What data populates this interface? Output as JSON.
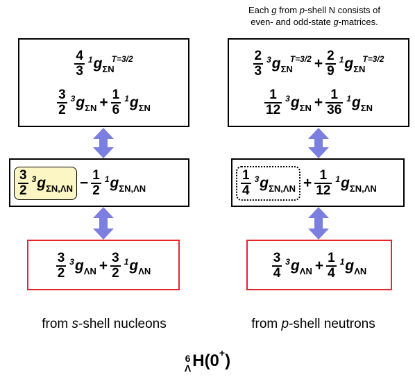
{
  "note": {
    "line1": [
      "Each ",
      "g",
      "  from ",
      "p",
      "-shell N consists of"
    ],
    "line2": [
      "even- and odd-state ",
      "g",
      "-matrices."
    ]
  },
  "left": {
    "top": {
      "row1": {
        "num": "4",
        "den": "3",
        "pre": "1",
        "sub": "ΣN",
        "sup": "T=3/2"
      },
      "row2": [
        {
          "num": "3",
          "den": "2",
          "pre": "3",
          "sub": "ΣN"
        },
        {
          "op": "+"
        },
        {
          "num": "1",
          "den": "6",
          "pre": "1",
          "sub": "ΣN"
        }
      ]
    },
    "middle": [
      {
        "num": "3",
        "den": "2",
        "pre": "3",
        "sub": "ΣN,ΛN"
      },
      {
        "op": "−"
      },
      {
        "num": "1",
        "den": "2",
        "pre": "1",
        "sub": "ΣN,ΛN"
      }
    ],
    "bottom": [
      {
        "num": "3",
        "den": "2",
        "pre": "3",
        "sub": "ΛN"
      },
      {
        "op": "+"
      },
      {
        "num": "3",
        "den": "2",
        "pre": "1",
        "sub": "ΛN"
      }
    ],
    "caption": [
      "from ",
      "s",
      "-shell nucleons"
    ]
  },
  "right": {
    "top": {
      "row1": [
        {
          "num": "2",
          "den": "3",
          "pre": "3",
          "sub": "ΣN",
          "sup": "T=3/2"
        },
        {
          "op": "+"
        },
        {
          "num": "2",
          "den": "9",
          "pre": "1",
          "sub": "ΣN",
          "sup": "T=3/2"
        }
      ],
      "row2": [
        {
          "num": "1",
          "den": "12",
          "pre": "3",
          "sub": "ΣN"
        },
        {
          "op": "+"
        },
        {
          "num": "1",
          "den": "36",
          "pre": "1",
          "sub": "ΣN"
        }
      ]
    },
    "middle": [
      {
        "num": "1",
        "den": "4",
        "pre": "3",
        "sub": "ΣN,ΛN"
      },
      {
        "op": "+"
      },
      {
        "num": "1",
        "den": "12",
        "pre": "1",
        "sub": "ΣN,ΛN"
      }
    ],
    "bottom": [
      {
        "num": "3",
        "den": "4",
        "pre": "3",
        "sub": "ΛN"
      },
      {
        "op": "+"
      },
      {
        "num": "1",
        "den": "4",
        "pre": "1",
        "sub": "ΛN"
      }
    ],
    "caption": [
      "from ",
      "p",
      "-shell neutrons"
    ]
  },
  "symbol": "g",
  "title": {
    "mass": "6",
    "sub": "Λ",
    "element": "H(0",
    "charge": "+",
    "close": ")"
  },
  "colors": {
    "arrow": "#7b7fe0",
    "red_border": "#e8242c",
    "highlight": "#fcf6c4"
  }
}
